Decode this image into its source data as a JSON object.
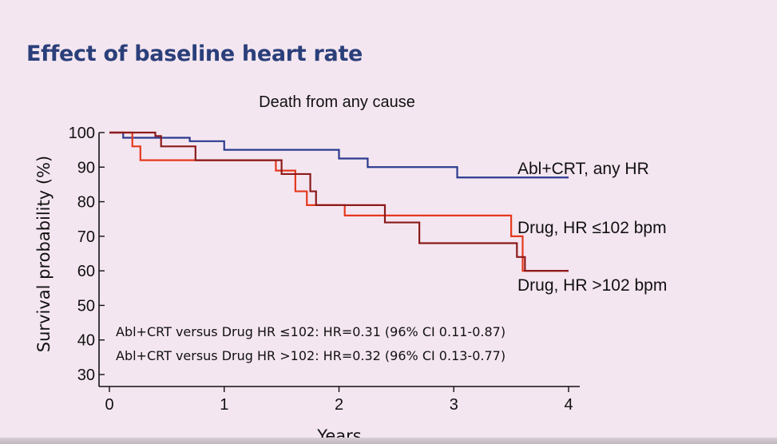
{
  "slide": {
    "title": "Effect of baseline heart rate"
  },
  "chart_data": {
    "type": "line",
    "title": "Death from any cause",
    "xlabel": "Years",
    "ylabel": "Survival probability (%)",
    "xlim": [
      0,
      4
    ],
    "ylim": [
      28,
      100
    ],
    "x_ticks": [
      "0",
      "1",
      "2",
      "3",
      "4"
    ],
    "y_ticks": [
      "30",
      "40",
      "50",
      "60",
      "70",
      "80",
      "90",
      "100"
    ],
    "grid": false,
    "series": [
      {
        "name": "Abl+CRT, any HR",
        "color": "#2b3b8f",
        "step_points": [
          [
            0,
            100
          ],
          [
            0.12,
            98.5
          ],
          [
            0.7,
            97.5
          ],
          [
            1.0,
            95
          ],
          [
            1.5,
            95
          ],
          [
            1.7,
            95
          ],
          [
            2.0,
            92.5
          ],
          [
            2.25,
            90
          ],
          [
            3.03,
            87
          ],
          [
            4.0,
            87
          ]
        ]
      },
      {
        "name": "Drug, HR ≤102 bpm",
        "color": "#e5381e",
        "step_points": [
          [
            0,
            100
          ],
          [
            0.2,
            96
          ],
          [
            0.27,
            92
          ],
          [
            1.45,
            89
          ],
          [
            1.62,
            83
          ],
          [
            1.72,
            79
          ],
          [
            2.05,
            76
          ],
          [
            3.45,
            76
          ],
          [
            3.5,
            70
          ],
          [
            3.6,
            60
          ],
          [
            4.0,
            60
          ]
        ]
      },
      {
        "name": "Drug, HR >102 bpm",
        "color": "#8b1a1a",
        "step_points": [
          [
            0,
            100
          ],
          [
            0.4,
            99
          ],
          [
            0.45,
            96
          ],
          [
            0.75,
            92
          ],
          [
            1.5,
            88
          ],
          [
            1.75,
            83
          ],
          [
            1.8,
            79
          ],
          [
            2.4,
            74
          ],
          [
            2.7,
            68
          ],
          [
            3.55,
            64
          ],
          [
            3.62,
            60
          ],
          [
            4.0,
            60
          ]
        ]
      }
    ],
    "annotations": [
      "Abl+CRT versus Drug HR ≤102: HR=0.31 (96% CI 0.11-0.87)",
      "Abl+CRT versus Drug HR >102: HR=0.32 (96% CI 0.13-0.77)"
    ]
  }
}
